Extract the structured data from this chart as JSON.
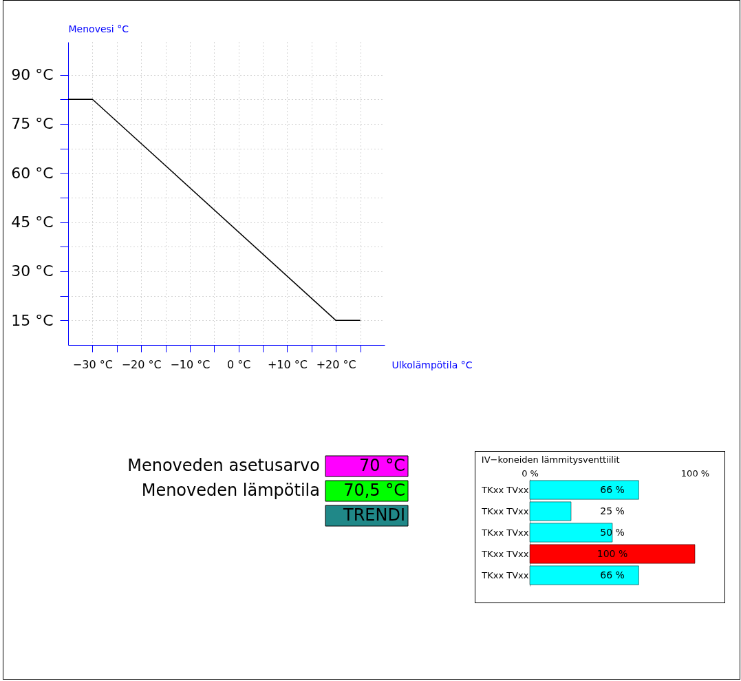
{
  "chart_data": [
    {
      "type": "line",
      "xlabel": "Ulkolämpötila °C",
      "ylabel": "Menovesi °C",
      "x": [
        -35,
        -30,
        20,
        25
      ],
      "series": [
        {
          "color": "#000000",
          "values": [
            82.5,
            82.5,
            15,
            15
          ]
        }
      ],
      "xlim": [
        -35,
        30
      ],
      "xticks": [
        {
          "value": -30,
          "label": "−30 °C"
        },
        {
          "value": -25,
          "label": null
        },
        {
          "value": -20,
          "label": "−20 °C"
        },
        {
          "value": -15,
          "label": null
        },
        {
          "value": -10,
          "label": "−10 °C"
        },
        {
          "value": -5,
          "label": null
        },
        {
          "value": 0,
          "label": "0 °C"
        },
        {
          "value": 5,
          "label": null
        },
        {
          "value": 10,
          "label": "+10 °C"
        },
        {
          "value": 15,
          "label": null
        },
        {
          "value": 20,
          "label": "+20 °C"
        },
        {
          "value": 25,
          "label": null
        }
      ],
      "ylim": [
        7.5,
        100
      ],
      "yticks": [
        {
          "value": 15,
          "label": "15 °C"
        },
        {
          "value": 22.5,
          "label": null
        },
        {
          "value": 30,
          "label": "30 °C"
        },
        {
          "value": 37.5,
          "label": null
        },
        {
          "value": 45,
          "label": "45 °C"
        },
        {
          "value": 52.5,
          "label": null
        },
        {
          "value": 60,
          "label": "60 °C"
        },
        {
          "value": 67.5,
          "label": null
        },
        {
          "value": 75,
          "label": "75 °C"
        },
        {
          "value": 82.5,
          "label": null
        },
        {
          "value": 90,
          "label": "90 °C"
        }
      ],
      "grid": true,
      "legend": false,
      "marker": "none",
      "line_style": "solid"
    },
    {
      "type": "bar",
      "orientation": "horizontal",
      "title": "IV−koneiden lämmitysventtiilit",
      "categories": [
        "TKxx TVxx",
        "TKxx TVxx",
        "TKxx TVxx",
        "TKxx TVxx",
        "TKxx TVxx"
      ],
      "values": [
        66,
        25,
        50,
        100,
        66
      ],
      "colors": [
        "#00ffff",
        "#00ffff",
        "#00ffff",
        "#ff0000",
        "#00ffff"
      ],
      "value_labels": [
        "66 %",
        "25 %",
        "50 %",
        "100 %",
        "66 %"
      ],
      "xlim": [
        0,
        100
      ],
      "xticks": [
        {
          "value": 0,
          "label": "0 %"
        },
        {
          "value": 100,
          "label": "100 %"
        }
      ],
      "grid": false,
      "legend": false
    },
    {
      "type": "other",
      "annotations": [
        "Menoveden asetusarvo",
        "70 °C",
        "Menoveden lämpötila",
        "70,5 °C",
        "TRENDI"
      ],
      "colors": [
        "#ff00ff",
        "#00ff00",
        "#208888"
      ]
    }
  ]
}
